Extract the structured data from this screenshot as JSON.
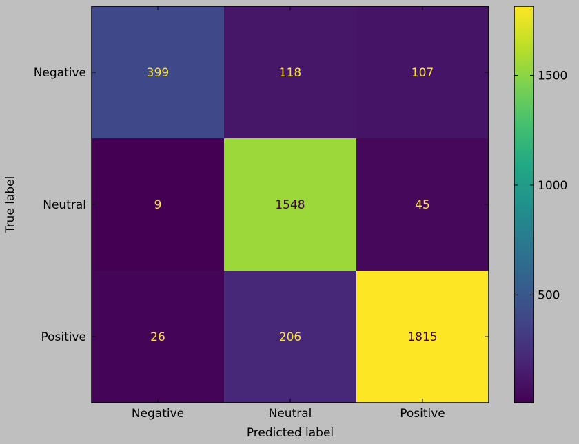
{
  "chart_data": {
    "type": "heatmap",
    "colormap": "viridis",
    "xlabel": "Predicted label",
    "ylabel": "True label",
    "x_categories": [
      "Negative",
      "Neutral",
      "Positive"
    ],
    "y_categories": [
      "Negative",
      "Neutral",
      "Positive"
    ],
    "values": [
      [
        399,
        118,
        107
      ],
      [
        9,
        1548,
        45
      ],
      [
        26,
        206,
        1815
      ]
    ],
    "colorbar": {
      "min": 9,
      "max": 1815,
      "ticks": [
        500,
        1000,
        1500
      ]
    },
    "grid": false
  }
}
